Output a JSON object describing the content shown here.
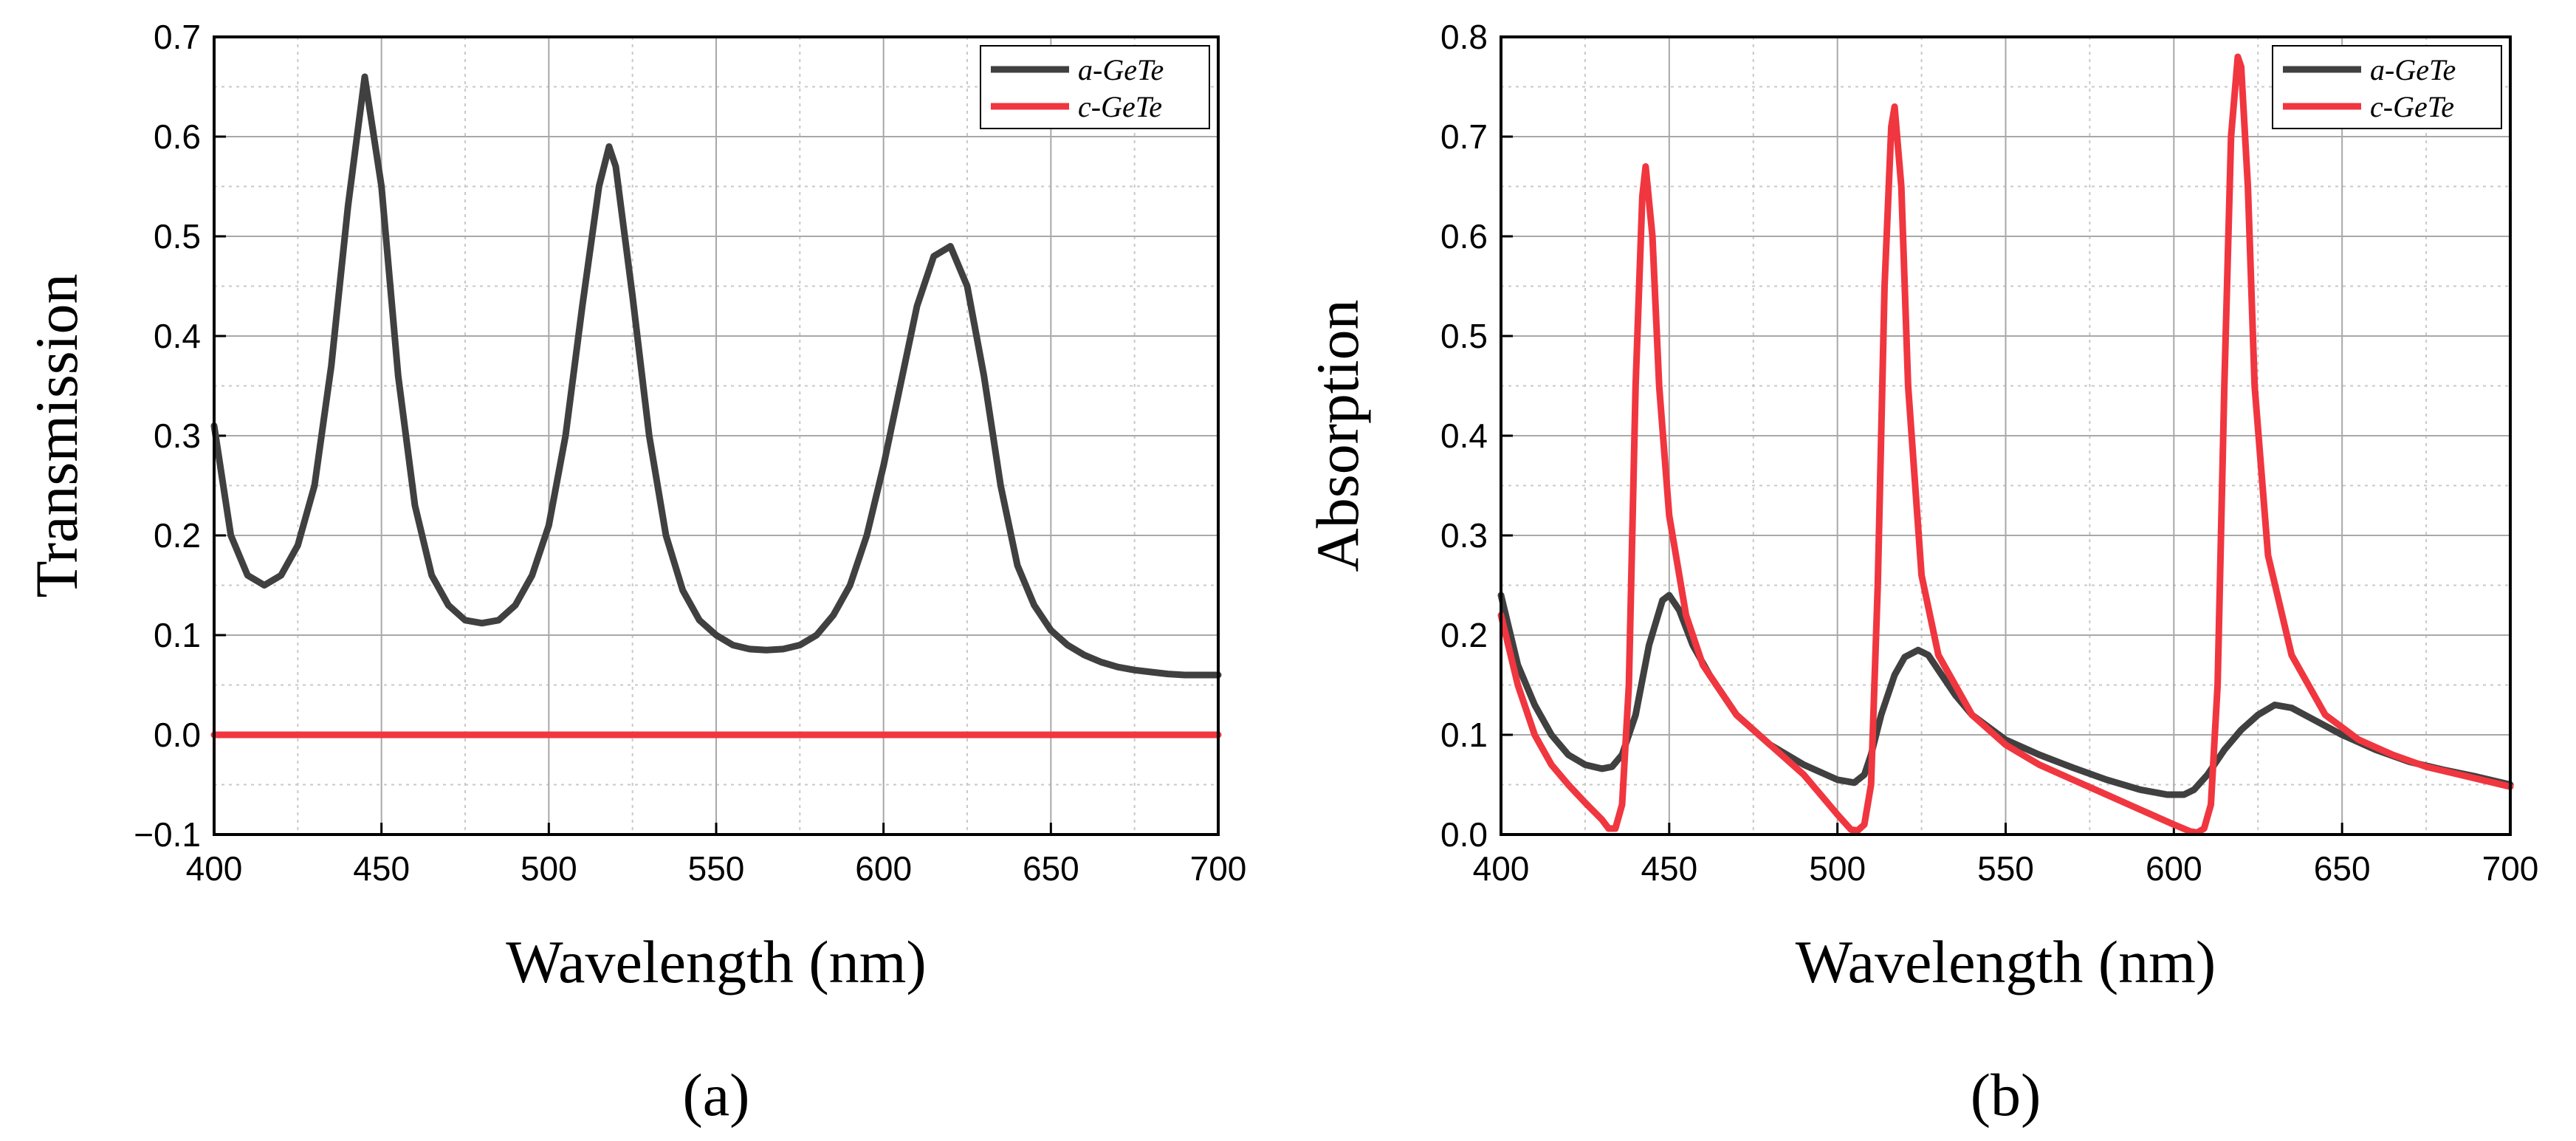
{
  "colors": {
    "a_gete": "#404040",
    "c_gete": "#f0363f",
    "grid": "#a8a8a8",
    "minor_grid": "#c8c8c8"
  },
  "chart_data": [
    {
      "type": "line",
      "panel_label": "(a)",
      "xlabel": "Wavelength (nm)",
      "ylabel": "Transmission",
      "xlim": [
        400,
        700
      ],
      "ylim": [
        -0.1,
        0.7
      ],
      "xticks": [
        400,
        450,
        500,
        550,
        600,
        650,
        700
      ],
      "yticks": [
        -0.1,
        0.0,
        0.1,
        0.2,
        0.3,
        0.4,
        0.5,
        0.6,
        0.7
      ],
      "ytick_labels": [
        "−0.1",
        "0.0",
        "0.1",
        "0.2",
        "0.3",
        "0.4",
        "0.5",
        "0.6",
        "0.7"
      ],
      "legend_position": "top-right",
      "series": [
        {
          "name": "a-GeTe",
          "color": "#404040",
          "x": [
            400,
            405,
            410,
            415,
            420,
            425,
            430,
            435,
            440,
            445,
            450,
            455,
            460,
            465,
            470,
            475,
            480,
            485,
            490,
            495,
            500,
            505,
            510,
            515,
            518,
            520,
            525,
            530,
            535,
            540,
            545,
            550,
            555,
            560,
            565,
            570,
            575,
            580,
            585,
            590,
            595,
            600,
            605,
            610,
            615,
            620,
            625,
            630,
            635,
            640,
            645,
            650,
            655,
            660,
            665,
            670,
            675,
            680,
            685,
            690,
            695,
            700
          ],
          "y": [
            0.31,
            0.2,
            0.16,
            0.15,
            0.16,
            0.19,
            0.25,
            0.37,
            0.53,
            0.66,
            0.55,
            0.36,
            0.23,
            0.16,
            0.13,
            0.115,
            0.112,
            0.115,
            0.13,
            0.16,
            0.21,
            0.3,
            0.43,
            0.55,
            0.59,
            0.57,
            0.44,
            0.3,
            0.2,
            0.145,
            0.115,
            0.1,
            0.09,
            0.086,
            0.085,
            0.086,
            0.09,
            0.1,
            0.12,
            0.15,
            0.2,
            0.27,
            0.35,
            0.43,
            0.48,
            0.49,
            0.45,
            0.36,
            0.25,
            0.17,
            0.13,
            0.105,
            0.09,
            0.08,
            0.073,
            0.068,
            0.065,
            0.063,
            0.061,
            0.06,
            0.06,
            0.06
          ]
        },
        {
          "name": "c-GeTe",
          "color": "#f0363f",
          "x": [
            400,
            700
          ],
          "y": [
            0.0,
            0.0
          ]
        }
      ]
    },
    {
      "type": "line",
      "panel_label": "(b)",
      "xlabel": "Wavelength (nm)",
      "ylabel": "Absorption",
      "xlim": [
        400,
        700
      ],
      "ylim": [
        0.0,
        0.8
      ],
      "xticks": [
        400,
        450,
        500,
        550,
        600,
        650,
        700
      ],
      "yticks": [
        0.0,
        0.1,
        0.2,
        0.3,
        0.4,
        0.5,
        0.6,
        0.7,
        0.8
      ],
      "ytick_labels": [
        "0.0",
        "0.1",
        "0.2",
        "0.3",
        "0.4",
        "0.5",
        "0.6",
        "0.7",
        "0.8"
      ],
      "legend_position": "top-right",
      "series": [
        {
          "name": "a-GeTe",
          "color": "#404040",
          "x": [
            400,
            405,
            410,
            415,
            420,
            425,
            430,
            433,
            436,
            440,
            444,
            448,
            450,
            453,
            457,
            462,
            470,
            480,
            490,
            500,
            505,
            508,
            510,
            513,
            517,
            520,
            524,
            527,
            530,
            535,
            540,
            550,
            560,
            570,
            580,
            590,
            598,
            603,
            606,
            610,
            615,
            620,
            625,
            630,
            635,
            640,
            650,
            660,
            670,
            680,
            690,
            700
          ],
          "y": [
            0.24,
            0.17,
            0.13,
            0.1,
            0.08,
            0.07,
            0.066,
            0.068,
            0.08,
            0.12,
            0.19,
            0.235,
            0.24,
            0.225,
            0.19,
            0.16,
            0.12,
            0.09,
            0.07,
            0.055,
            0.052,
            0.06,
            0.08,
            0.12,
            0.16,
            0.178,
            0.185,
            0.18,
            0.165,
            0.14,
            0.12,
            0.095,
            0.08,
            0.067,
            0.055,
            0.045,
            0.04,
            0.04,
            0.045,
            0.06,
            0.085,
            0.105,
            0.12,
            0.13,
            0.127,
            0.118,
            0.1,
            0.085,
            0.073,
            0.065,
            0.058,
            0.05
          ]
        },
        {
          "name": "c-GeTe",
          "color": "#f0363f",
          "x": [
            400,
            405,
            410,
            415,
            420,
            425,
            430,
            432,
            434,
            436,
            438,
            440,
            442,
            443,
            445,
            447,
            450,
            455,
            460,
            470,
            480,
            490,
            500,
            504,
            506,
            508,
            510,
            512,
            514,
            516,
            517,
            519,
            521,
            525,
            530,
            540,
            550,
            560,
            570,
            580,
            590,
            600,
            605,
            607,
            609,
            611,
            613,
            615,
            617,
            619,
            620,
            622,
            624,
            628,
            635,
            645,
            655,
            665,
            675,
            685,
            700
          ],
          "y": [
            0.22,
            0.15,
            0.1,
            0.07,
            0.05,
            0.032,
            0.015,
            0.006,
            0.006,
            0.03,
            0.15,
            0.45,
            0.64,
            0.67,
            0.6,
            0.45,
            0.32,
            0.22,
            0.17,
            0.12,
            0.09,
            0.06,
            0.02,
            0.005,
            0.004,
            0.01,
            0.05,
            0.25,
            0.55,
            0.71,
            0.73,
            0.65,
            0.45,
            0.26,
            0.18,
            0.12,
            0.09,
            0.07,
            0.055,
            0.04,
            0.025,
            0.01,
            0.003,
            0.002,
            0.006,
            0.03,
            0.15,
            0.45,
            0.7,
            0.78,
            0.77,
            0.65,
            0.45,
            0.28,
            0.18,
            0.12,
            0.095,
            0.08,
            0.068,
            0.06,
            0.048
          ]
        }
      ]
    }
  ]
}
